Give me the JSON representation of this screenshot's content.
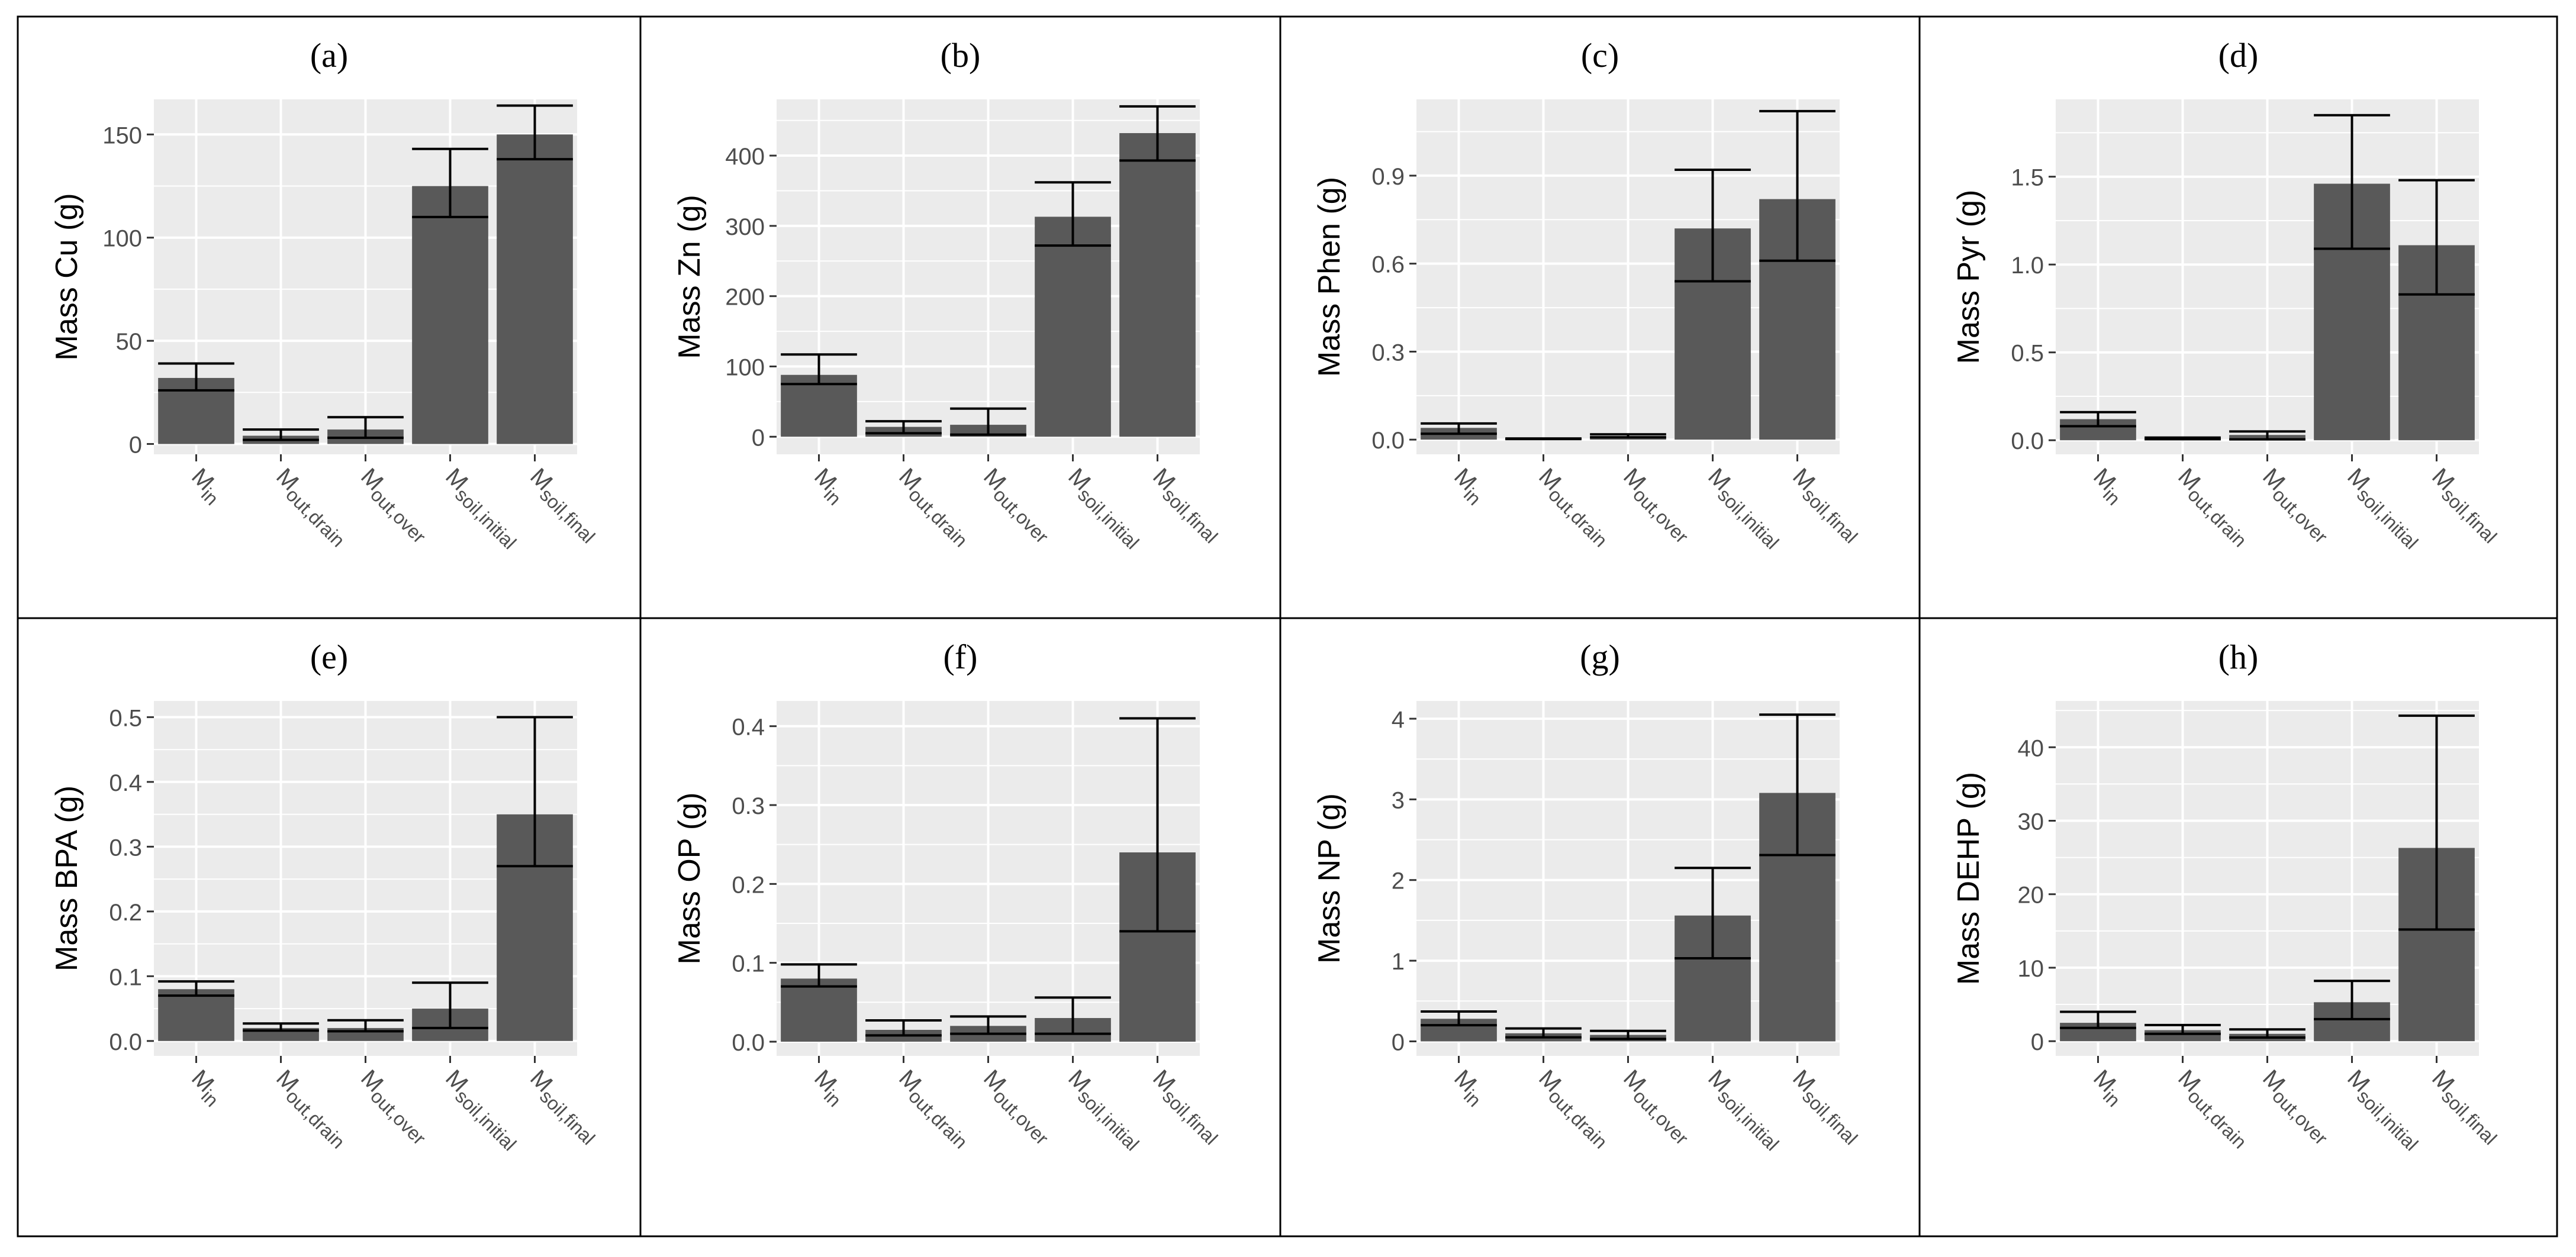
{
  "figure": {
    "categories": [
      {
        "main": "M",
        "sub": "in"
      },
      {
        "main": "M",
        "sub": "out,drain"
      },
      {
        "main": "M",
        "sub": "out,over"
      },
      {
        "main": "M",
        "sub": "soil,initial"
      },
      {
        "main": "M",
        "sub": "soil,final"
      }
    ],
    "bar_color": "#595959",
    "panel_bg_color": "#ebebeb",
    "grid_color": "#ffffff",
    "border_color": "#000000"
  },
  "chart_data": [
    {
      "type": "bar",
      "panel_label": "(a)",
      "title": "",
      "xlabel": "",
      "ylabel": "Mass Cu (g)",
      "ylim": [
        -5,
        167
      ],
      "yticks": [
        0,
        50,
        100,
        150
      ],
      "ytick_labels": [
        "0",
        "50",
        "100",
        "150"
      ],
      "categories": [
        "Min",
        "Mout,drain",
        "Mout,over",
        "Msoil,initial",
        "Msoil,final"
      ],
      "values": [
        32,
        4,
        7,
        125,
        150
      ],
      "error_low": [
        26,
        2,
        3,
        110,
        138
      ],
      "error_high": [
        39,
        7,
        13,
        143,
        164
      ]
    },
    {
      "type": "bar",
      "panel_label": "(b)",
      "title": "",
      "xlabel": "",
      "ylabel": "Mass Zn (g)",
      "ylim": [
        -25,
        480
      ],
      "yticks": [
        0,
        100,
        200,
        300,
        400
      ],
      "ytick_labels": [
        "0",
        "100",
        "200",
        "300",
        "400"
      ],
      "categories": [
        "Min",
        "Mout,drain",
        "Mout,over",
        "Msoil,initial",
        "Msoil,final"
      ],
      "values": [
        88,
        14,
        17,
        313,
        432
      ],
      "error_low": [
        75,
        5,
        3,
        272,
        393
      ],
      "error_high": [
        117,
        22,
        40,
        362,
        470
      ]
    },
    {
      "type": "bar",
      "panel_label": "(c)",
      "title": "",
      "xlabel": "",
      "ylabel": "Mass Phen (g)",
      "ylim": [
        -0.05,
        1.16
      ],
      "yticks": [
        0,
        0.3,
        0.6,
        0.9
      ],
      "ytick_labels": [
        "0.0",
        "0.3",
        "0.6",
        "0.9"
      ],
      "categories": [
        "Min",
        "Mout,drain",
        "Mout,over",
        "Msoil,initial",
        "Msoil,final"
      ],
      "values": [
        0.04,
        0.003,
        0.012,
        0.72,
        0.82
      ],
      "error_low": [
        0.02,
        0.002,
        0.008,
        0.54,
        0.61
      ],
      "error_high": [
        0.055,
        0.004,
        0.018,
        0.92,
        1.12
      ]
    },
    {
      "type": "bar",
      "panel_label": "(d)",
      "title": "",
      "xlabel": "",
      "ylabel": "Mass Pyr (g)",
      "ylim": [
        -0.08,
        1.94
      ],
      "yticks": [
        0,
        0.5,
        1.0,
        1.5
      ],
      "ytick_labels": [
        "0.0",
        "0.5",
        "1.0",
        "1.5"
      ],
      "categories": [
        "Min",
        "Mout,drain",
        "Mout,over",
        "Msoil,initial",
        "Msoil,final"
      ],
      "values": [
        0.12,
        0.01,
        0.03,
        1.46,
        1.11
      ],
      "error_low": [
        0.08,
        0.006,
        0.005,
        1.09,
        0.83
      ],
      "error_high": [
        0.16,
        0.015,
        0.05,
        1.85,
        1.48
      ]
    },
    {
      "type": "bar",
      "panel_label": "(e)",
      "title": "",
      "xlabel": "",
      "ylabel": "Mass BPA (g)",
      "ylim": [
        -0.023,
        0.525
      ],
      "yticks": [
        0,
        0.1,
        0.2,
        0.3,
        0.4,
        0.5
      ],
      "ytick_labels": [
        "0.0",
        "0.1",
        "0.2",
        "0.3",
        "0.4",
        "0.5"
      ],
      "categories": [
        "Min",
        "Mout,drain",
        "Mout,over",
        "Msoil,initial",
        "Msoil,final"
      ],
      "values": [
        0.08,
        0.02,
        0.02,
        0.05,
        0.35
      ],
      "error_low": [
        0.07,
        0.016,
        0.015,
        0.02,
        0.27
      ],
      "error_high": [
        0.092,
        0.027,
        0.032,
        0.09,
        0.5
      ]
    },
    {
      "type": "bar",
      "panel_label": "(f)",
      "title": "",
      "xlabel": "",
      "ylabel": "Mass OP (g)",
      "ylim": [
        -0.018,
        0.432
      ],
      "yticks": [
        0,
        0.1,
        0.2,
        0.3,
        0.4
      ],
      "ytick_labels": [
        "0.0",
        "0.1",
        "0.2",
        "0.3",
        "0.4"
      ],
      "categories": [
        "Min",
        "Mout,drain",
        "Mout,over",
        "Msoil,initial",
        "Msoil,final"
      ],
      "values": [
        0.08,
        0.015,
        0.02,
        0.03,
        0.24
      ],
      "error_low": [
        0.07,
        0.008,
        0.01,
        0.01,
        0.14
      ],
      "error_high": [
        0.098,
        0.027,
        0.032,
        0.056,
        0.41
      ]
    },
    {
      "type": "bar",
      "panel_label": "(g)",
      "title": "",
      "xlabel": "",
      "ylabel": "Mass NP (g)",
      "ylim": [
        -0.18,
        4.22
      ],
      "yticks": [
        0,
        1,
        2,
        3,
        4
      ],
      "ytick_labels": [
        "0",
        "1",
        "2",
        "3",
        "4"
      ],
      "categories": [
        "Min",
        "Mout,drain",
        "Mout,over",
        "Msoil,initial",
        "Msoil,final"
      ],
      "values": [
        0.28,
        0.1,
        0.08,
        1.56,
        3.08
      ],
      "error_low": [
        0.2,
        0.05,
        0.03,
        1.03,
        2.31
      ],
      "error_high": [
        0.37,
        0.16,
        0.13,
        2.15,
        4.05
      ]
    },
    {
      "type": "bar",
      "panel_label": "(h)",
      "title": "",
      "xlabel": "",
      "ylabel": "Mass DEHP (g)",
      "ylim": [
        -2,
        46.3
      ],
      "yticks": [
        0,
        10,
        20,
        30,
        40
      ],
      "ytick_labels": [
        "0",
        "10",
        "20",
        "30",
        "40"
      ],
      "categories": [
        "Min",
        "Mout,drain",
        "Mout,over",
        "Msoil,initial",
        "Msoil,final"
      ],
      "values": [
        2.5,
        1.5,
        1.0,
        5.3,
        26.3
      ],
      "error_low": [
        1.8,
        1.0,
        0.5,
        3.0,
        15.2
      ],
      "error_high": [
        4.0,
        2.2,
        1.6,
        8.2,
        44.3
      ]
    }
  ]
}
